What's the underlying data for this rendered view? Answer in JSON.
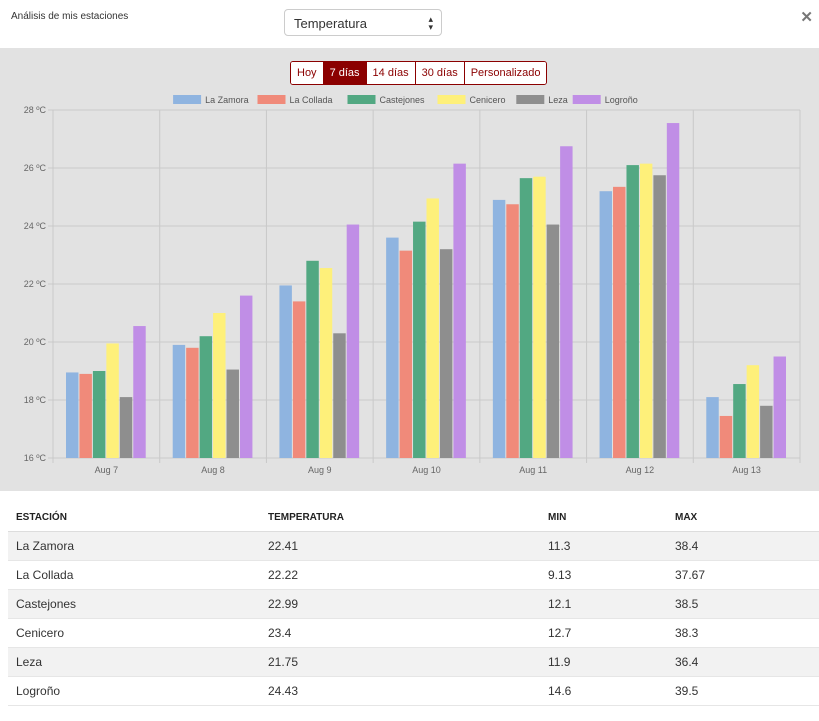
{
  "header": {
    "title": "Análisis de mis estaciones",
    "metric_select": "Temperatura",
    "close_icon": "close-icon"
  },
  "range_buttons": [
    {
      "label": "Hoy",
      "active": false
    },
    {
      "label": "7 días",
      "active": true
    },
    {
      "label": "14 días",
      "active": false
    },
    {
      "label": "30 días",
      "active": false
    },
    {
      "label": "Personalizado",
      "active": false
    }
  ],
  "chart_data": {
    "type": "bar",
    "categories": [
      "Aug 7",
      "Aug 8",
      "Aug 9",
      "Aug 10",
      "Aug 11",
      "Aug 12",
      "Aug 13"
    ],
    "ylim": [
      16,
      28
    ],
    "yticks": [
      "16 ºC",
      "18 ºC",
      "20 ºC",
      "22 ºC",
      "24 ºC",
      "26 ºC",
      "28 ºC"
    ],
    "legend_position": "top",
    "grid": true,
    "series": [
      {
        "name": "La Zamora",
        "color": "#8fb4e0",
        "values": [
          18.95,
          19.9,
          21.95,
          23.6,
          24.9,
          25.2,
          18.1
        ]
      },
      {
        "name": "La Collada",
        "color": "#f08a7a",
        "values": [
          18.9,
          19.8,
          21.4,
          23.15,
          24.75,
          25.35,
          17.45
        ]
      },
      {
        "name": "Castejones",
        "color": "#52a882",
        "values": [
          19.0,
          20.2,
          22.8,
          24.15,
          25.65,
          26.1,
          18.55
        ]
      },
      {
        "name": "Cenicero",
        "color": "#fef07a",
        "values": [
          19.95,
          21.0,
          22.55,
          24.95,
          25.7,
          26.15,
          19.2
        ]
      },
      {
        "name": "Leza",
        "color": "#8e8e8e",
        "values": [
          18.1,
          19.05,
          20.3,
          23.2,
          24.05,
          25.75,
          17.8
        ]
      },
      {
        "name": "Logroño",
        "color": "#c08ee6",
        "values": [
          20.55,
          21.6,
          24.05,
          26.15,
          26.75,
          27.55,
          19.5
        ]
      }
    ]
  },
  "table": {
    "headers": [
      "ESTACIÓN",
      "TEMPERATURA",
      "MIN",
      "MAX"
    ],
    "rows": [
      [
        "La Zamora",
        "22.41",
        "11.3",
        "38.4"
      ],
      [
        "La Collada",
        "22.22",
        "9.13",
        "37.67"
      ],
      [
        "Castejones",
        "22.99",
        "12.1",
        "38.5"
      ],
      [
        "Cenicero",
        "23.4",
        "12.7",
        "38.3"
      ],
      [
        "Leza",
        "21.75",
        "11.9",
        "36.4"
      ],
      [
        "Logroño",
        "24.43",
        "14.6",
        "39.5"
      ]
    ]
  }
}
